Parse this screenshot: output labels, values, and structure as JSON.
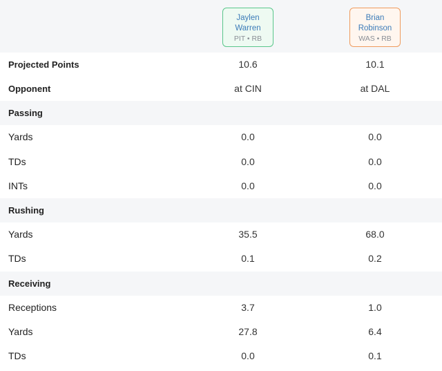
{
  "players": [
    {
      "first": "Jaylen",
      "last": "Warren",
      "meta": "PIT • RB"
    },
    {
      "first": "Brian",
      "last": "Robinson",
      "meta": "WAS • RB"
    }
  ],
  "rows": [
    {
      "type": "bold",
      "label": "Projected Points",
      "v1": "10.6",
      "v2": "10.1"
    },
    {
      "type": "bold",
      "label": "Opponent",
      "v1": "at CIN",
      "v2": "at DAL"
    },
    {
      "type": "section",
      "label": "Passing"
    },
    {
      "type": "stat",
      "label": "Yards",
      "v1": "0.0",
      "v2": "0.0"
    },
    {
      "type": "stat",
      "label": "TDs",
      "v1": "0.0",
      "v2": "0.0"
    },
    {
      "type": "stat",
      "label": "INTs",
      "v1": "0.0",
      "v2": "0.0"
    },
    {
      "type": "section",
      "label": "Rushing"
    },
    {
      "type": "stat",
      "label": "Yards",
      "v1": "35.5",
      "v2": "68.0"
    },
    {
      "type": "stat",
      "label": "TDs",
      "v1": "0.1",
      "v2": "0.2"
    },
    {
      "type": "section",
      "label": "Receiving"
    },
    {
      "type": "stat",
      "label": "Receptions",
      "v1": "3.7",
      "v2": "1.0"
    },
    {
      "type": "stat",
      "label": "Yards",
      "v1": "27.8",
      "v2": "6.4"
    },
    {
      "type": "stat",
      "label": "TDs",
      "v1": "0.0",
      "v2": "0.1"
    }
  ]
}
